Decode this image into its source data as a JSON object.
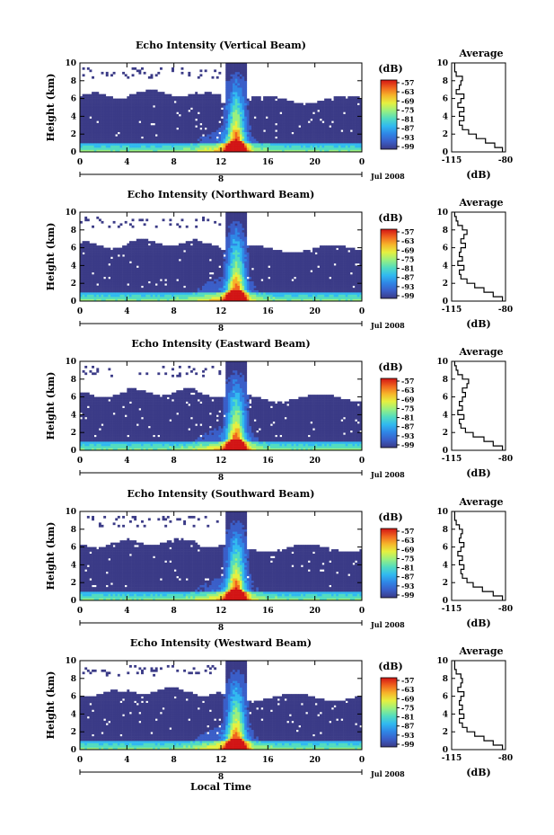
{
  "figure": {
    "xlabel": "Local Time",
    "colorbar_label": "(dB)",
    "colorbar_ticks": [
      "-57",
      "-63",
      "-69",
      "-75",
      "-81",
      "-87",
      "-93",
      "-99"
    ],
    "date_label": "Jul 2008",
    "day_label": "8",
    "avg_title": "Average",
    "avg_xlabel": "(dB)"
  },
  "colors": {
    "no_echo": "#ffffff",
    "floor": "#3b3b87",
    "axis": "#000000",
    "colormap": [
      "#3b3b87",
      "#3a5ec8",
      "#2f86e6",
      "#31b9f0",
      "#52dcc0",
      "#9af07f",
      "#e6f040",
      "#f6b42a",
      "#f0641e",
      "#d21414"
    ]
  },
  "chart_data": [
    {
      "type": "heatmap",
      "title": "Echo Intensity (Vertical Beam)",
      "ylabel": "Height (km)",
      "xlabel": "",
      "x_ticks": [
        "0",
        "4",
        "8",
        "12",
        "16",
        "20",
        "0"
      ],
      "y_ticks": [
        "0",
        "2",
        "4",
        "6",
        "8",
        "10"
      ],
      "xlim": [
        0,
        24
      ],
      "ylim": [
        0,
        10
      ],
      "colorbar": {
        "label": "(dB)",
        "ticks": [
          -57,
          -63,
          -69,
          -75,
          -81,
          -87,
          -93,
          -99
        ]
      },
      "average_profile": {
        "title": "Average",
        "xlabel": "(dB)",
        "x_ticks": [
          "-115",
          "-80"
        ],
        "y_ticks": [
          "0",
          "2",
          "4",
          "6",
          "8",
          "10"
        ],
        "xlim": [
          -115,
          -80
        ],
        "ylim": [
          0,
          10
        ],
        "height_km": [
          0,
          0.5,
          1,
          1.5,
          2,
          2.5,
          3,
          3.5,
          4,
          4.5,
          5,
          5.5,
          6,
          6.5,
          7,
          7.5,
          8,
          8.5,
          9,
          9.5
        ],
        "intensity_db": [
          -82,
          -87,
          -93,
          -99,
          -104,
          -108,
          -110,
          -107,
          -110,
          -107,
          -111,
          -109,
          -107,
          -112,
          -110,
          -109,
          -108,
          -112,
          -113,
          -113
        ]
      }
    },
    {
      "type": "heatmap",
      "title": "Echo Intensity (Northward Beam)",
      "ylabel": "Height (km)",
      "xlabel": "",
      "x_ticks": [
        "0",
        "4",
        "8",
        "12",
        "16",
        "20",
        "0"
      ],
      "y_ticks": [
        "0",
        "2",
        "4",
        "6",
        "8",
        "10"
      ],
      "xlim": [
        0,
        24
      ],
      "ylim": [
        0,
        10
      ],
      "colorbar": {
        "label": "(dB)",
        "ticks": [
          -57,
          -63,
          -69,
          -75,
          -81,
          -87,
          -93,
          -99
        ]
      },
      "average_profile": {
        "title": "Average",
        "xlabel": "(dB)",
        "x_ticks": [
          "-115",
          "-80"
        ],
        "y_ticks": [
          "0",
          "2",
          "4",
          "6",
          "8",
          "10"
        ],
        "xlim": [
          -115,
          -80
        ],
        "ylim": [
          0,
          10
        ],
        "height_km": [
          0,
          0.5,
          1,
          1.5,
          2,
          2.5,
          3,
          3.5,
          4,
          4.5,
          5,
          5.5,
          6,
          6.5,
          7,
          7.5,
          8,
          8.5,
          9,
          9.5
        ],
        "intensity_db": [
          -82,
          -88,
          -94,
          -100,
          -105,
          -109,
          -110,
          -107,
          -111,
          -108,
          -110,
          -109,
          -106,
          -109,
          -107,
          -105,
          -108,
          -111,
          -112,
          -113
        ]
      }
    },
    {
      "type": "heatmap",
      "title": "Echo Intensity (Eastward Beam)",
      "ylabel": "Height (km)",
      "xlabel": "",
      "x_ticks": [
        "0",
        "4",
        "8",
        "12",
        "16",
        "20",
        "0"
      ],
      "y_ticks": [
        "0",
        "2",
        "4",
        "6",
        "8",
        "10"
      ],
      "xlim": [
        0,
        24
      ],
      "ylim": [
        0,
        10
      ],
      "colorbar": {
        "label": "(dB)",
        "ticks": [
          -57,
          -63,
          -69,
          -75,
          -81,
          -87,
          -93,
          -99
        ]
      },
      "average_profile": {
        "title": "Average",
        "xlabel": "(dB)",
        "x_ticks": [
          "-115",
          "-80"
        ],
        "y_ticks": [
          "0",
          "2",
          "4",
          "6",
          "8",
          "10"
        ],
        "xlim": [
          -115,
          -80
        ],
        "ylim": [
          0,
          10
        ],
        "height_km": [
          0,
          0.5,
          1,
          1.5,
          2,
          2.5,
          3,
          3.5,
          4,
          4.5,
          5,
          5.5,
          6,
          6.5,
          7,
          7.5,
          8,
          8.5,
          9,
          9.5
        ],
        "intensity_db": [
          -82,
          -88,
          -94,
          -101,
          -106,
          -109,
          -110,
          -107,
          -111,
          -108,
          -110,
          -108,
          -106,
          -108,
          -105,
          -104,
          -108,
          -111,
          -112,
          -113
        ]
      }
    },
    {
      "type": "heatmap",
      "title": "Echo Intensity (Southward Beam)",
      "ylabel": "Height (km)",
      "xlabel": "",
      "x_ticks": [
        "0",
        "4",
        "8",
        "12",
        "16",
        "20",
        "0"
      ],
      "y_ticks": [
        "0",
        "2",
        "4",
        "6",
        "8",
        "10"
      ],
      "xlim": [
        0,
        24
      ],
      "ylim": [
        0,
        10
      ],
      "colorbar": {
        "label": "(dB)",
        "ticks": [
          -57,
          -63,
          -69,
          -75,
          -81,
          -87,
          -93,
          -99
        ]
      },
      "average_profile": {
        "title": "Average",
        "xlabel": "(dB)",
        "x_ticks": [
          "-115",
          "-80"
        ],
        "y_ticks": [
          "0",
          "2",
          "4",
          "6",
          "8",
          "10"
        ],
        "xlim": [
          -115,
          -80
        ],
        "ylim": [
          0,
          10
        ],
        "height_km": [
          0,
          0.5,
          1,
          1.5,
          2,
          2.5,
          3,
          3.5,
          4,
          4.5,
          5,
          5.5,
          6,
          6.5,
          7,
          7.5,
          8,
          8.5,
          9,
          9.5
        ],
        "intensity_db": [
          -82,
          -88,
          -95,
          -101,
          -105,
          -108,
          -109,
          -107,
          -110,
          -108,
          -111,
          -109,
          -107,
          -110,
          -109,
          -108,
          -110,
          -112,
          -113,
          -113
        ]
      }
    },
    {
      "type": "heatmap",
      "title": "Echo Intensity (Westward Beam)",
      "ylabel": "Height (km)",
      "xlabel": "",
      "x_ticks": [
        "0",
        "4",
        "8",
        "12",
        "16",
        "20",
        "0"
      ],
      "y_ticks": [
        "0",
        "2",
        "4",
        "6",
        "8",
        "10"
      ],
      "xlim": [
        0,
        24
      ],
      "ylim": [
        0,
        10
      ],
      "colorbar": {
        "label": "(dB)",
        "ticks": [
          -57,
          -63,
          -69,
          -75,
          -81,
          -87,
          -93,
          -99
        ]
      },
      "average_profile": {
        "title": "Average",
        "xlabel": "(dB)",
        "x_ticks": [
          "-115",
          "-80"
        ],
        "y_ticks": [
          "0",
          "2",
          "4",
          "6",
          "8",
          "10"
        ],
        "xlim": [
          -115,
          -80
        ],
        "ylim": [
          0,
          10
        ],
        "height_km": [
          0,
          0.5,
          1,
          1.5,
          2,
          2.5,
          3,
          3.5,
          4,
          4.5,
          5,
          5.5,
          6,
          6.5,
          7,
          7.5,
          8,
          8.5,
          9,
          9.5
        ],
        "intensity_db": [
          -82,
          -88,
          -94,
          -100,
          -105,
          -108,
          -110,
          -107,
          -110,
          -108,
          -110,
          -109,
          -107,
          -111,
          -109,
          -108,
          -109,
          -112,
          -113,
          -113
        ]
      }
    }
  ]
}
